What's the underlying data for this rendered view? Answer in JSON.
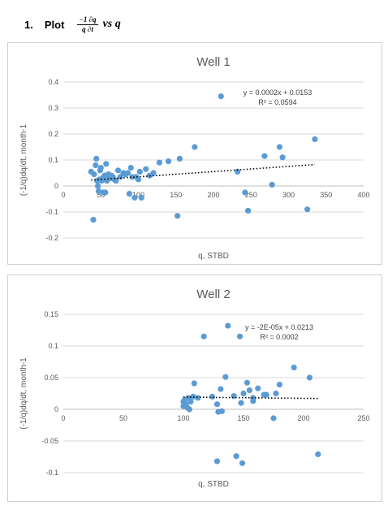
{
  "heading": {
    "number": "1.",
    "word": "Plot",
    "fraction_numerator": "−1 ∂q",
    "fraction_denominator": "q  ∂t",
    "rest": "vs q"
  },
  "chart_data": [
    {
      "type": "scatter",
      "title": "Well 1",
      "xlabel": "q, STBD",
      "ylabel": "(-1/q)dq/dt, month-1",
      "xlim": [
        0,
        400
      ],
      "ylim": [
        -0.2,
        0.4
      ],
      "x_ticks": [
        0,
        50,
        100,
        150,
        200,
        250,
        300,
        350,
        400
      ],
      "y_ticks": [
        -0.2,
        -0.1,
        0,
        0.1,
        0.2,
        0.3,
        0.4
      ],
      "y_tick_labels": [
        "-0.2",
        "-0.1",
        "0",
        "0.1",
        "0.2",
        "0.3",
        "0.4"
      ],
      "grid": "horizontal",
      "point_color": "#5b9bd5",
      "trendline": {
        "slope": 0.0002,
        "intercept": 0.0153,
        "x_range": [
          37,
          335
        ],
        "color": "#000000"
      },
      "equation": "y = 0.0002x + 0.0153",
      "r_squared": "R² = 0.0594",
      "points": [
        [
          37,
          0.055
        ],
        [
          40,
          -0.13
        ],
        [
          41,
          0.045
        ],
        [
          43,
          0.08
        ],
        [
          44,
          0.105
        ],
        [
          45,
          0.02
        ],
        [
          46,
          0.0
        ],
        [
          47,
          -0.02
        ],
        [
          48,
          0.025
        ],
        [
          49,
          0.06
        ],
        [
          50,
          0.07
        ],
        [
          51,
          0.02
        ],
        [
          52,
          0.03
        ],
        [
          53,
          -0.025
        ],
        [
          55,
          0.04
        ],
        [
          56,
          -0.025
        ],
        [
          57,
          0.085
        ],
        [
          58,
          0.02
        ],
        [
          60,
          0.045
        ],
        [
          62,
          0.03
        ],
        [
          64,
          0.04
        ],
        [
          66,
          0.035
        ],
        [
          68,
          0.025
        ],
        [
          70,
          0.02
        ],
        [
          73,
          0.06
        ],
        [
          76,
          0.035
        ],
        [
          80,
          0.05
        ],
        [
          83,
          0.045
        ],
        [
          86,
          0.05
        ],
        [
          88,
          -0.03
        ],
        [
          90,
          0.07
        ],
        [
          92,
          0.035
        ],
        [
          95,
          -0.045
        ],
        [
          97,
          0.035
        ],
        [
          100,
          0.025
        ],
        [
          102,
          0.055
        ],
        [
          104,
          -0.045
        ],
        [
          110,
          0.065
        ],
        [
          115,
          0.04
        ],
        [
          120,
          0.05
        ],
        [
          128,
          0.09
        ],
        [
          140,
          0.095
        ],
        [
          152,
          -0.115
        ],
        [
          155,
          0.105
        ],
        [
          175,
          0.15
        ],
        [
          210,
          0.345
        ],
        [
          232,
          0.055
        ],
        [
          242,
          -0.025
        ],
        [
          246,
          -0.095
        ],
        [
          268,
          0.115
        ],
        [
          278,
          0.005
        ],
        [
          288,
          0.15
        ],
        [
          292,
          0.11
        ],
        [
          325,
          -0.09
        ],
        [
          335,
          0.18
        ]
      ]
    },
    {
      "type": "scatter",
      "title": "Well 2",
      "xlabel": "q, STBD",
      "ylabel": "(-1/q)dq/dt, month-1",
      "xlim": [
        0,
        250
      ],
      "ylim": [
        -0.1,
        0.15
      ],
      "x_ticks": [
        0,
        50,
        100,
        150,
        200,
        250
      ],
      "y_ticks": [
        -0.1,
        -0.05,
        0,
        0.05,
        0.1,
        0.15
      ],
      "y_tick_labels": [
        "-0.1",
        "-0.05",
        "0",
        "0.05",
        "0.1",
        "0.15"
      ],
      "grid": "horizontal",
      "point_color": "#5b9bd5",
      "trendline": {
        "slope": -2e-05,
        "intercept": 0.0213,
        "x_range": [
          100,
          212
        ],
        "color": "#000000"
      },
      "equation": "y = -2E-05x + 0.0213",
      "r_squared": "R² = 0.0002",
      "points": [
        [
          100,
          0.012
        ],
        [
          100,
          0.005
        ],
        [
          101,
          0.015
        ],
        [
          102,
          0.008
        ],
        [
          103,
          0.003
        ],
        [
          104,
          0.018
        ],
        [
          105,
          0.0
        ],
        [
          106,
          0.012
        ],
        [
          108,
          0.02
        ],
        [
          109,
          0.041
        ],
        [
          112,
          0.018
        ],
        [
          117,
          0.115
        ],
        [
          124,
          0.02
        ],
        [
          128,
          -0.082
        ],
        [
          128,
          0.008
        ],
        [
          129,
          -0.004
        ],
        [
          131,
          0.032
        ],
        [
          132,
          -0.003
        ],
        [
          135,
          0.051
        ],
        [
          137,
          0.132
        ],
        [
          142,
          0.021
        ],
        [
          144,
          -0.074
        ],
        [
          147,
          0.115
        ],
        [
          148,
          0.01
        ],
        [
          149,
          -0.085
        ],
        [
          150,
          0.025
        ],
        [
          153,
          0.042
        ],
        [
          155,
          0.03
        ],
        [
          158,
          0.013
        ],
        [
          158,
          0.018
        ],
        [
          162,
          0.033
        ],
        [
          167,
          0.023
        ],
        [
          169,
          0.023
        ],
        [
          175,
          -0.014
        ],
        [
          177,
          0.025
        ],
        [
          180,
          0.039
        ],
        [
          192,
          0.066
        ],
        [
          205,
          0.05
        ],
        [
          212,
          -0.071
        ]
      ]
    }
  ]
}
